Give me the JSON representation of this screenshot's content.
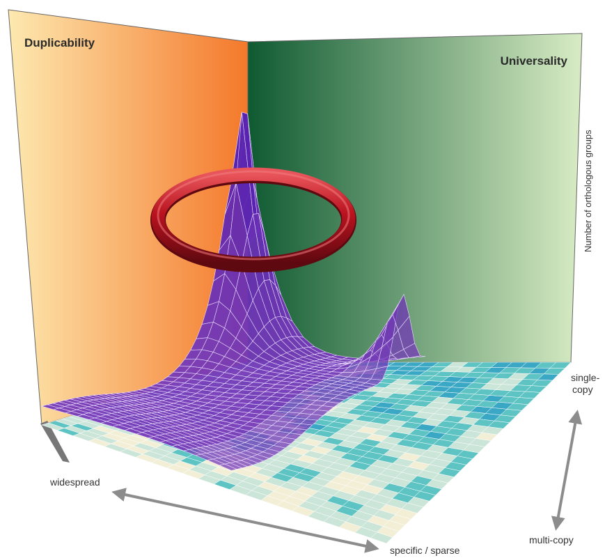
{
  "walls": {
    "left_title": "Duplicability",
    "right_title": "Universality",
    "left_colors": [
      "#fde9b0",
      "#f4782a"
    ],
    "right_colors": [
      "#0f5a32",
      "#d8ecc4"
    ]
  },
  "axes": {
    "vertical": "Number of orthologous groups",
    "front_left": "widespread",
    "front_right": "specific / sparse",
    "depth_top": "single-\ncopy",
    "depth_bottom": "multi-copy"
  },
  "highlight": {
    "color": "#c2131f",
    "shape": "torus-ring"
  },
  "surface": {
    "mesh_color": "#6d38b0",
    "floor_palette": [
      "#f2efd6",
      "#cbe5d8",
      "#5dc3c3",
      "#3aa8c4",
      "#3e4fd0",
      "#7a30c0"
    ]
  }
}
